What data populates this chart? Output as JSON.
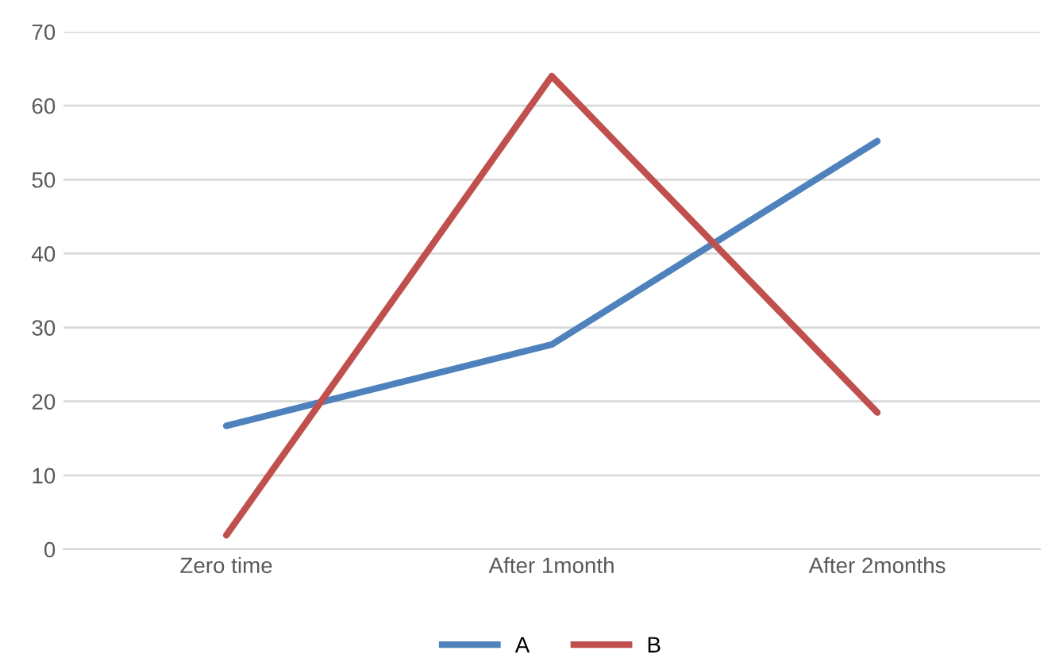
{
  "chart_data": {
    "type": "line",
    "categories": [
      "Zero time",
      "After 1month",
      "After 2months"
    ],
    "series": [
      {
        "name": "A",
        "color": "#4f81bd",
        "values": [
          16.7,
          27.7,
          55.2
        ]
      },
      {
        "name": "B",
        "color": "#c0504d",
        "values": [
          1.9,
          64,
          18.5
        ]
      }
    ],
    "ylim": [
      0,
      70
    ],
    "yticks": [
      0,
      10,
      20,
      30,
      40,
      50,
      60,
      70
    ],
    "grid": "y",
    "legend": "bottom",
    "marker": "none",
    "line_style": "solid"
  }
}
